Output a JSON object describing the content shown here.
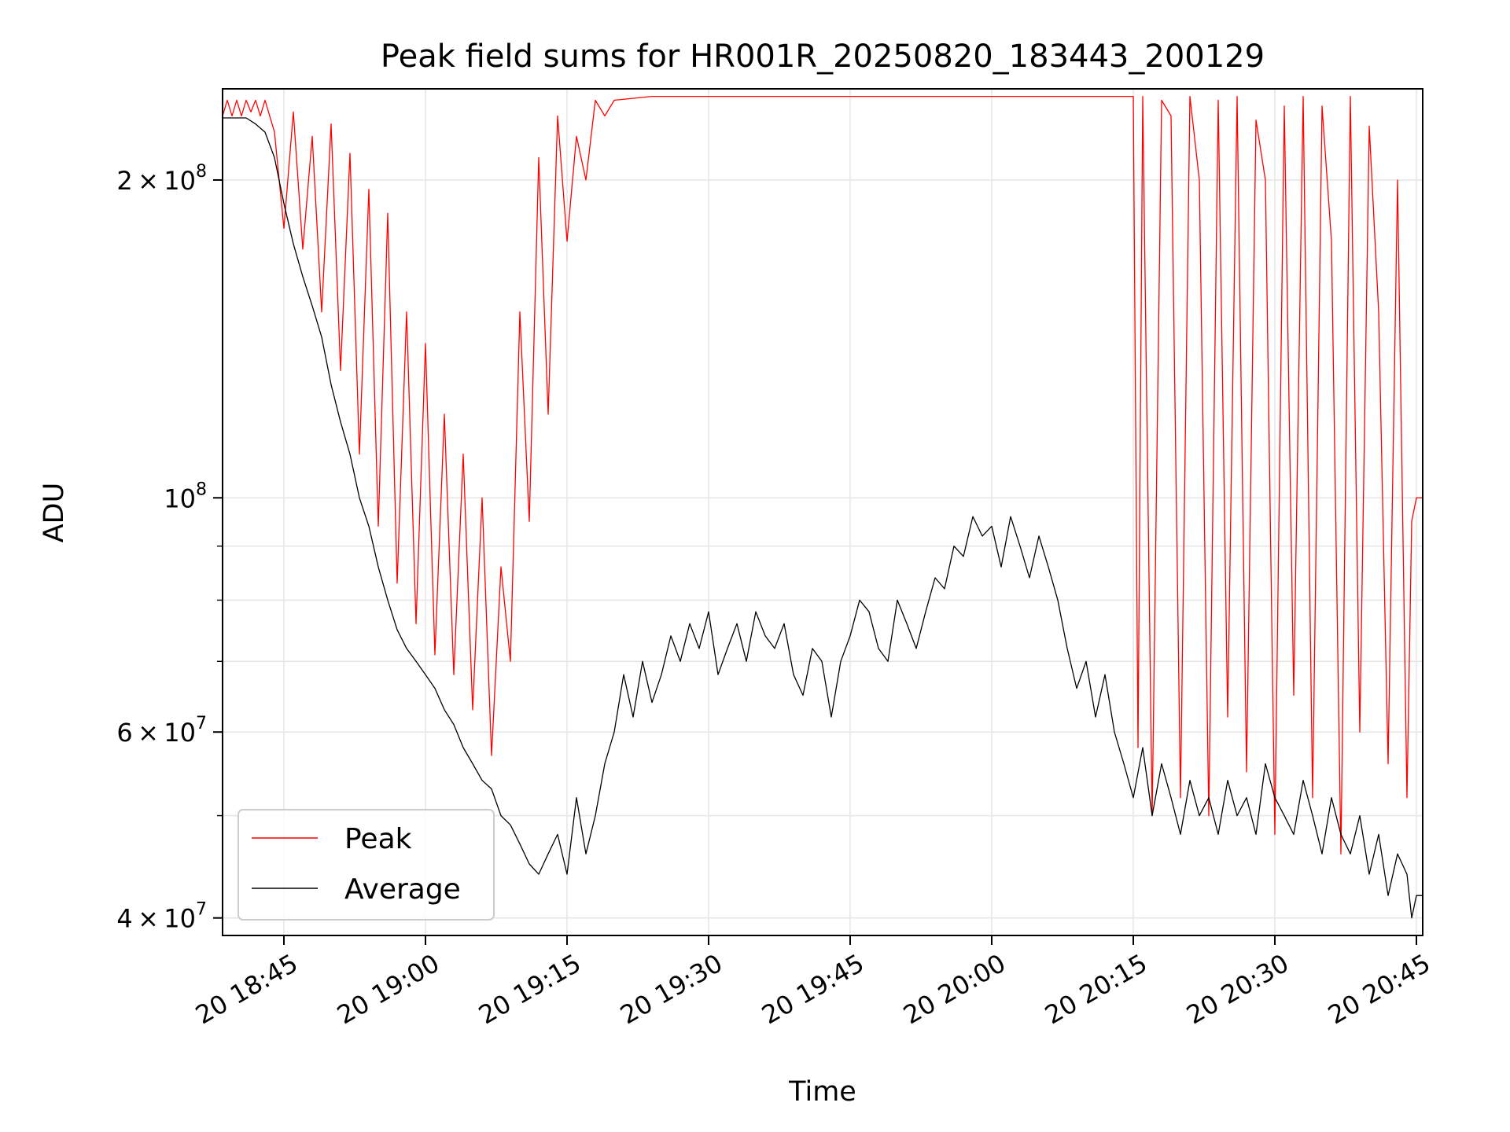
{
  "chart_data": {
    "type": "line",
    "title": "Peak field sums for HR001R_20250820_183443_200129",
    "xlabel": "Time",
    "ylabel": "ADU",
    "yscale": "log",
    "xlim": [
      "20 18:38:30",
      "20 20:45:40"
    ],
    "ylim": [
      38500000,
      244000000
    ],
    "grid": true,
    "legend_position": "lower-left",
    "x_ticks": [
      {
        "value": "20 18:45",
        "label": "20 18:45"
      },
      {
        "value": "20 19:00",
        "label": "20 19:00"
      },
      {
        "value": "20 19:15",
        "label": "20 19:15"
      },
      {
        "value": "20 19:30",
        "label": "20 19:30"
      },
      {
        "value": "20 19:45",
        "label": "20 19:45"
      },
      {
        "value": "20 20:00",
        "label": "20 20:00"
      },
      {
        "value": "20 20:15",
        "label": "20 20:15"
      },
      {
        "value": "20 20:30",
        "label": "20 20:30"
      },
      {
        "value": "20 20:45",
        "label": "20 20:45"
      }
    ],
    "y_major_ticks": [
      {
        "value": 40000000,
        "mantissa": "4",
        "exp": "7"
      },
      {
        "value": 60000000,
        "mantissa": "6",
        "exp": "7"
      },
      {
        "value": 100000000,
        "mantissa": "",
        "exp": "8"
      },
      {
        "value": 200000000,
        "mantissa": "2",
        "exp": "8"
      }
    ],
    "series": [
      {
        "name": "Peak",
        "color": "#ff0000",
        "x": [
          "20 18:38:30",
          "20 18:39:00",
          "20 18:39:30",
          "20 18:40:00",
          "20 18:40:30",
          "20 18:41:00",
          "20 18:41:30",
          "20 18:42:00",
          "20 18:42:30",
          "20 18:43:00",
          "20 18:44:00",
          "20 18:45:00",
          "20 18:46:00",
          "20 18:47:00",
          "20 18:48:00",
          "20 18:49:00",
          "20 18:50:00",
          "20 18:51:00",
          "20 18:52:00",
          "20 18:53:00",
          "20 18:54:00",
          "20 18:55:00",
          "20 18:56:00",
          "20 18:57:00",
          "20 18:58:00",
          "20 18:59:00",
          "20 19:00:00",
          "20 19:01:00",
          "20 19:02:00",
          "20 19:03:00",
          "20 19:04:00",
          "20 19:05:00",
          "20 19:06:00",
          "20 19:07:00",
          "20 19:08:00",
          "20 19:09:00",
          "20 19:10:00",
          "20 19:11:00",
          "20 19:12:00",
          "20 19:13:00",
          "20 19:14:00",
          "20 19:15:00",
          "20 19:16:00",
          "20 19:17:00",
          "20 19:18:00",
          "20 19:19:00",
          "20 19:20:00",
          "20 19:24:00",
          "20 19:30:00",
          "20 19:40:00",
          "20 19:50:00",
          "20 20:00:00",
          "20 20:10:00",
          "20 20:15:00",
          "20 20:15:30",
          "20 20:16:00",
          "20 20:17:00",
          "20 20:18:00",
          "20 20:19:00",
          "20 20:20:00",
          "20 20:21:00",
          "20 20:22:00",
          "20 20:23:00",
          "20 20:24:00",
          "20 20:25:00",
          "20 20:26:00",
          "20 20:27:00",
          "20 20:28:00",
          "20 20:29:00",
          "20 20:30:00",
          "20 20:31:00",
          "20 20:32:00",
          "20 20:33:00",
          "20 20:34:00",
          "20 20:35:00",
          "20 20:36:00",
          "20 20:37:00",
          "20 20:38:00",
          "20 20:39:00",
          "20 20:40:00",
          "20 20:41:00",
          "20 20:42:00",
          "20 20:43:00",
          "20 20:44:00",
          "20 20:44:30",
          "20 20:45:00",
          "20 20:45:40"
        ],
        "y": [
          230000000,
          238000000,
          230000000,
          238000000,
          230000000,
          238000000,
          232000000,
          238000000,
          230000000,
          238000000,
          222000000,
          180000000,
          232000000,
          172000000,
          220000000,
          150000000,
          226000000,
          132000000,
          212000000,
          110000000,
          196000000,
          94000000,
          186000000,
          83000000,
          150000000,
          76000000,
          140000000,
          71000000,
          120000000,
          68000000,
          110000000,
          63000000,
          100000000,
          57000000,
          86000000,
          70000000,
          150000000,
          95000000,
          210000000,
          120000000,
          230000000,
          175000000,
          220000000,
          200000000,
          238000000,
          230000000,
          238000000,
          240000000,
          240000000,
          240000000,
          240000000,
          240000000,
          240000000,
          240000000,
          58000000,
          240000000,
          50000000,
          238000000,
          230000000,
          52000000,
          240000000,
          200000000,
          50000000,
          238000000,
          62000000,
          240000000,
          55000000,
          228000000,
          200000000,
          48000000,
          235000000,
          65000000,
          240000000,
          52000000,
          235000000,
          175000000,
          46000000,
          240000000,
          60000000,
          225000000,
          150000000,
          56000000,
          200000000,
          52000000,
          95000000,
          100000000,
          100000000
        ]
      },
      {
        "name": "Average",
        "color": "#000000",
        "x": [
          "20 18:38:30",
          "20 18:40:00",
          "20 18:41:00",
          "20 18:42:00",
          "20 18:43:00",
          "20 18:44:00",
          "20 18:45:00",
          "20 18:46:00",
          "20 18:47:00",
          "20 18:48:00",
          "20 18:49:00",
          "20 18:50:00",
          "20 18:51:00",
          "20 18:52:00",
          "20 18:53:00",
          "20 18:54:00",
          "20 18:55:00",
          "20 18:56:00",
          "20 18:57:00",
          "20 18:58:00",
          "20 18:59:00",
          "20 19:00:00",
          "20 19:01:00",
          "20 19:02:00",
          "20 19:03:00",
          "20 19:04:00",
          "20 19:05:00",
          "20 19:06:00",
          "20 19:07:00",
          "20 19:08:00",
          "20 19:09:00",
          "20 19:10:00",
          "20 19:11:00",
          "20 19:12:00",
          "20 19:13:00",
          "20 19:14:00",
          "20 19:15:00",
          "20 19:16:00",
          "20 19:17:00",
          "20 19:18:00",
          "20 19:19:00",
          "20 19:20:00",
          "20 19:21:00",
          "20 19:22:00",
          "20 19:23:00",
          "20 19:24:00",
          "20 19:25:00",
          "20 19:26:00",
          "20 19:27:00",
          "20 19:28:00",
          "20 19:29:00",
          "20 19:30:00",
          "20 19:31:00",
          "20 19:32:00",
          "20 19:33:00",
          "20 19:34:00",
          "20 19:35:00",
          "20 19:36:00",
          "20 19:37:00",
          "20 19:38:00",
          "20 19:39:00",
          "20 19:40:00",
          "20 19:41:00",
          "20 19:42:00",
          "20 19:43:00",
          "20 19:44:00",
          "20 19:45:00",
          "20 19:46:00",
          "20 19:47:00",
          "20 19:48:00",
          "20 19:49:00",
          "20 19:50:00",
          "20 19:51:00",
          "20 19:52:00",
          "20 19:53:00",
          "20 19:54:00",
          "20 19:55:00",
          "20 19:56:00",
          "20 19:57:00",
          "20 19:58:00",
          "20 19:59:00",
          "20 20:00:00",
          "20 20:01:00",
          "20 20:02:00",
          "20 20:03:00",
          "20 20:04:00",
          "20 20:05:00",
          "20 20:06:00",
          "20 20:07:00",
          "20 20:08:00",
          "20 20:09:00",
          "20 20:10:00",
          "20 20:11:00",
          "20 20:12:00",
          "20 20:13:00",
          "20 20:14:00",
          "20 20:15:00",
          "20 20:16:00",
          "20 20:17:00",
          "20 20:18:00",
          "20 20:19:00",
          "20 20:20:00",
          "20 20:21:00",
          "20 20:22:00",
          "20 20:23:00",
          "20 20:24:00",
          "20 20:25:00",
          "20 20:26:00",
          "20 20:27:00",
          "20 20:28:00",
          "20 20:29:00",
          "20 20:30:00",
          "20 20:31:00",
          "20 20:32:00",
          "20 20:33:00",
          "20 20:34:00",
          "20 20:35:00",
          "20 20:36:00",
          "20 20:37:00",
          "20 20:38:00",
          "20 20:39:00",
          "20 20:40:00",
          "20 20:41:00",
          "20 20:42:00",
          "20 20:43:00",
          "20 20:44:00",
          "20 20:44:30",
          "20 20:45:00",
          "20 20:45:40"
        ],
        "y": [
          229000000,
          229000000,
          229000000,
          226000000,
          222000000,
          210000000,
          190000000,
          174000000,
          162000000,
          152000000,
          142000000,
          128000000,
          118000000,
          110000000,
          100000000,
          94000000,
          86000000,
          80000000,
          75000000,
          72000000,
          70000000,
          68000000,
          66000000,
          63000000,
          61000000,
          58000000,
          56000000,
          54000000,
          53000000,
          50000000,
          49000000,
          47000000,
          45000000,
          44000000,
          46000000,
          48000000,
          44000000,
          52000000,
          46000000,
          50000000,
          56000000,
          60000000,
          68000000,
          62000000,
          70000000,
          64000000,
          68000000,
          74000000,
          70000000,
          76000000,
          72000000,
          78000000,
          68000000,
          72000000,
          76000000,
          70000000,
          78000000,
          74000000,
          72000000,
          76000000,
          68000000,
          65000000,
          72000000,
          70000000,
          62000000,
          70000000,
          74000000,
          80000000,
          78000000,
          72000000,
          70000000,
          80000000,
          76000000,
          72000000,
          78000000,
          84000000,
          82000000,
          90000000,
          88000000,
          96000000,
          92000000,
          94000000,
          86000000,
          96000000,
          90000000,
          84000000,
          92000000,
          86000000,
          80000000,
          72000000,
          66000000,
          70000000,
          62000000,
          68000000,
          60000000,
          56000000,
          52000000,
          58000000,
          50000000,
          56000000,
          52000000,
          48000000,
          54000000,
          50000000,
          52000000,
          48000000,
          54000000,
          50000000,
          52000000,
          48000000,
          56000000,
          52000000,
          50000000,
          48000000,
          54000000,
          50000000,
          46000000,
          52000000,
          48000000,
          46000000,
          50000000,
          44000000,
          48000000,
          42000000,
          46000000,
          44000000,
          40000000,
          42000000,
          42000000
        ]
      }
    ]
  }
}
